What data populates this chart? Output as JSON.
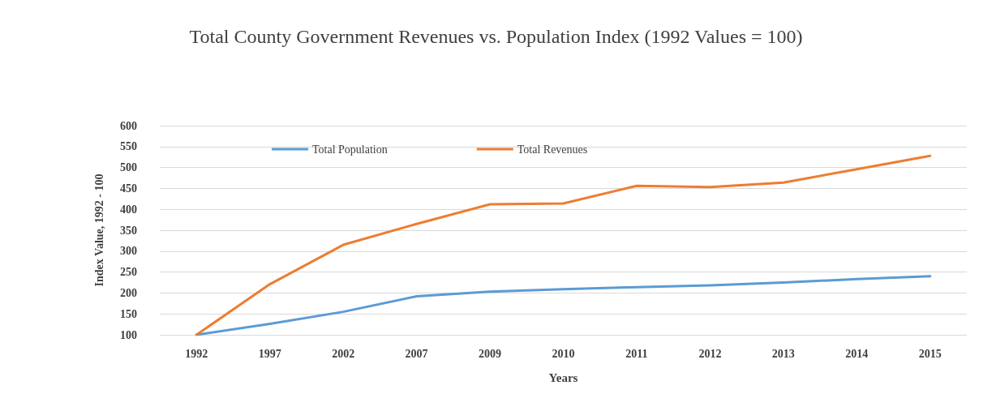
{
  "chart_data": {
    "type": "line",
    "title": "Total County Government Revenues vs. Population Index (1992 Values = 100)",
    "xlabel": "Years",
    "ylabel": "Index Value, 1992 - 100",
    "categories": [
      "1992",
      "1997",
      "2002",
      "2007",
      "2009",
      "2010",
      "2011",
      "2012",
      "2013",
      "2014",
      "2015"
    ],
    "series": [
      {
        "name": "Total Population",
        "color": "#5b9bd5",
        "values": [
          100,
          126,
          155,
          192,
          203,
          209,
          214,
          218,
          225,
          233,
          240
        ]
      },
      {
        "name": "Total Revenues",
        "color": "#ed7d31",
        "values": [
          100,
          221,
          315,
          365,
          412,
          414,
          456,
          453,
          464,
          496,
          528
        ]
      }
    ],
    "ylim": [
      100,
      600
    ],
    "yticks": [
      100,
      150,
      200,
      250,
      300,
      350,
      400,
      450,
      500,
      550,
      600
    ],
    "grid": "y",
    "legend": "top",
    "marker": "none",
    "line_style": "solid"
  }
}
